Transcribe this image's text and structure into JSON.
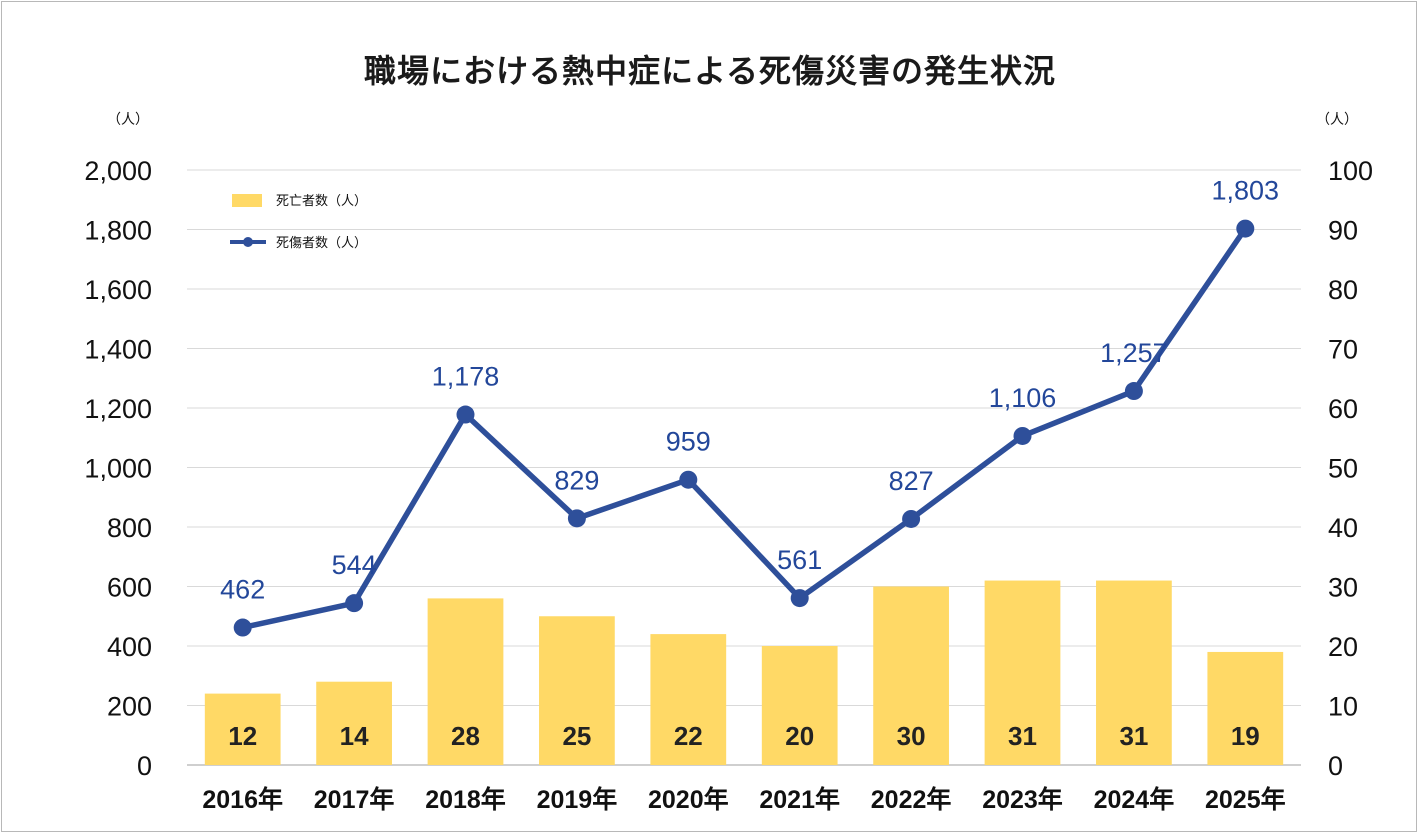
{
  "chart_data": {
    "type": "bar",
    "title": "職場における熱中症による死傷災害の発生状況",
    "categories": [
      "2016年",
      "2017年",
      "2018年",
      "2019年",
      "2020年",
      "2021年",
      "2022年",
      "2023年",
      "2024年",
      "2025年"
    ],
    "series": [
      {
        "name": "死亡者数（人）",
        "type": "bar",
        "axis": "right",
        "color": "#ffd966",
        "values": [
          12,
          14,
          28,
          25,
          22,
          20,
          30,
          31,
          31,
          19
        ]
      },
      {
        "name": "死傷者数（人）",
        "type": "line",
        "axis": "left",
        "color": "#2e4f9a",
        "values": [
          462,
          544,
          1178,
          829,
          959,
          561,
          827,
          1106,
          1257,
          1803
        ]
      }
    ],
    "y_left": {
      "unit": "（人）",
      "ylim": [
        0,
        2000
      ],
      "ticks": [
        "0",
        "200",
        "400",
        "600",
        "800",
        "1,000",
        "1,200",
        "1,400",
        "1,600",
        "1,800",
        "2,000"
      ]
    },
    "y_right": {
      "unit": "（人）",
      "ylim": [
        0,
        100
      ],
      "ticks": [
        "0",
        "10",
        "20",
        "30",
        "40",
        "50",
        "60",
        "70",
        "80",
        "90",
        "100"
      ]
    },
    "grid": true,
    "legend_position": "top-left"
  }
}
